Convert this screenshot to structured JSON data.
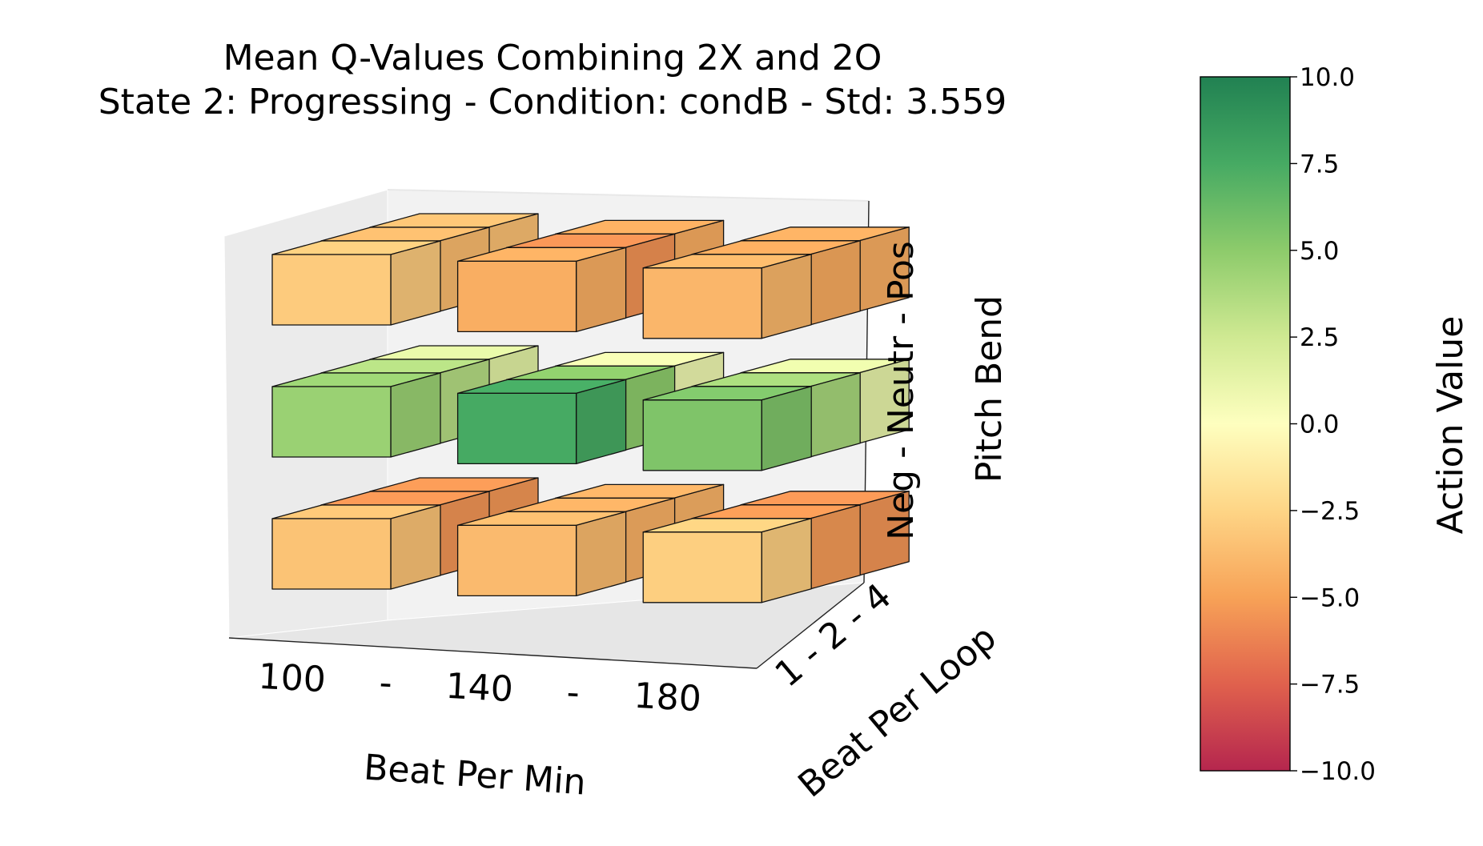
{
  "chart_data": {
    "type": "3d-bar",
    "title": "Mean Q-Values Combining 2X and 2O",
    "subtitle": "State 2: Progressing  -  Condition: condB  -  Std: 3.559",
    "x_axis": {
      "label": "Beat Per Min",
      "ticks": [
        "100",
        "-",
        "140",
        "-",
        "180"
      ]
    },
    "y_axis": {
      "label": "Beat Per Loop",
      "ticks": [
        "1 - 2 - 4"
      ]
    },
    "z_axis": {
      "label": "Pitch Bend",
      "ticks": [
        "Neg - Neutr - Pos"
      ]
    },
    "colorbar": {
      "label": "Action Value",
      "range": [
        -10,
        10
      ],
      "ticks": [
        "10.0",
        "7.5",
        "5.0",
        "2.5",
        "0.0",
        "−2.5",
        "−5.0",
        "−7.5",
        "−10.0"
      ],
      "stops": [
        "#b5264e",
        "#e0614d",
        "#f7a257",
        "#fed586",
        "#feffbf",
        "#cfe992",
        "#8dcb6b",
        "#46aa63",
        "#218152"
      ]
    },
    "bpm_values": [
      100,
      140,
      180
    ],
    "loop_values": [
      1,
      2,
      4
    ],
    "pitch_values": [
      "Neg",
      "Neutr",
      "Pos"
    ],
    "values": {
      "Pos": [
        [
          -3.0,
          -3.8,
          -3.5
        ],
        [
          -4.4,
          -5.6,
          -4.5
        ],
        [
          -4.0,
          -4.6,
          -4.4
        ]
      ],
      "Neutr": [
        [
          4.5,
          3.5,
          1.5
        ],
        [
          7.5,
          5.0,
          0.8
        ],
        [
          5.5,
          4.0,
          1.2
        ]
      ],
      "Neg": [
        [
          -3.4,
          -5.5,
          -5.4
        ],
        [
          -3.8,
          -4.3,
          -4.2
        ],
        [
          -2.8,
          -5.3,
          -5.5
        ]
      ]
    }
  }
}
